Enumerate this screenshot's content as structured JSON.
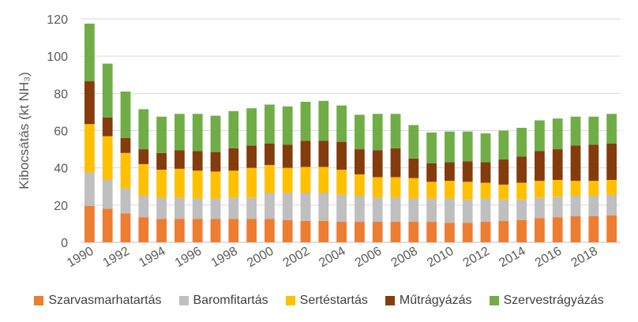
{
  "chart_data": {
    "type": "bar",
    "stacked": true,
    "ylabel": "Kibocsátás (kt NH₃)",
    "ylim": [
      0,
      120
    ],
    "yticks": [
      0,
      20,
      40,
      60,
      80,
      100,
      120
    ],
    "grid": "horizontal",
    "legend_position": "bottom",
    "categories": [
      "1990",
      "1991",
      "1992",
      "1993",
      "1994",
      "1995",
      "1996",
      "1997",
      "1998",
      "1999",
      "2000",
      "2001",
      "2002",
      "2003",
      "2004",
      "2005",
      "2006",
      "2007",
      "2008",
      "2009",
      "2010",
      "2011",
      "2012",
      "2013",
      "2014",
      "2015",
      "2016",
      "2017",
      "2018",
      "2019"
    ],
    "x_tick_labels": [
      "1990",
      "",
      "1992",
      "",
      "1994",
      "",
      "1996",
      "",
      "1998",
      "",
      "2000",
      "",
      "2002",
      "",
      "2004",
      "",
      "2006",
      "",
      "2008",
      "",
      "2010",
      "",
      "2012",
      "",
      "2014",
      "",
      "2016",
      "",
      "2018",
      ""
    ],
    "series": [
      {
        "name": "Szarvasmarhatartás",
        "color": "#ED7D31",
        "values": [
          19.5,
          18,
          15.5,
          13.5,
          12.5,
          12.5,
          12.5,
          12.5,
          12.5,
          12.5,
          12.5,
          12,
          11.5,
          11.5,
          11,
          11,
          11,
          11,
          11,
          11,
          10.5,
          10.5,
          11,
          11.5,
          12,
          13,
          13.5,
          14,
          14,
          14.5
        ]
      },
      {
        "name": "Baromfitartás",
        "color": "#BFBFBF",
        "values": [
          18,
          15.5,
          13.5,
          11.5,
          11.5,
          11.5,
          11,
          11,
          11.5,
          11.5,
          14,
          14.5,
          15,
          15,
          14.5,
          14,
          13,
          13,
          12.5,
          12.5,
          13,
          12.5,
          12.5,
          11.5,
          11,
          11,
          11,
          11,
          11,
          11
        ]
      },
      {
        "name": "Sertéstartás",
        "color": "#FFC000",
        "values": [
          26,
          23.5,
          19,
          17,
          15,
          15.5,
          15,
          14.5,
          14.5,
          16,
          15,
          13.5,
          14,
          14,
          13.5,
          11.5,
          11,
          11,
          11,
          9,
          9.5,
          9.5,
          8.5,
          8,
          9,
          9,
          9,
          8,
          8,
          8
        ]
      },
      {
        "name": "Műtrágyázás",
        "color": "#843C0C",
        "values": [
          23,
          10,
          8,
          8,
          9,
          10,
          10.5,
          10.5,
          12,
          12,
          11.5,
          12.5,
          14,
          14,
          15,
          13.5,
          14.5,
          15.5,
          10.5,
          10,
          10,
          11,
          11,
          13.5,
          14,
          16,
          16.5,
          19,
          19.5,
          19.5
        ]
      },
      {
        "name": "Szervestrágyázás",
        "color": "#70AD47",
        "values": [
          31,
          29,
          25,
          21.5,
          19.5,
          19.5,
          20,
          19.5,
          20,
          20,
          21,
          20.5,
          21,
          21.5,
          19.5,
          18.5,
          19.5,
          18.5,
          18,
          16.5,
          16.5,
          16,
          15.5,
          15.5,
          15.5,
          16.5,
          16.5,
          15.5,
          15,
          16
        ]
      }
    ]
  }
}
